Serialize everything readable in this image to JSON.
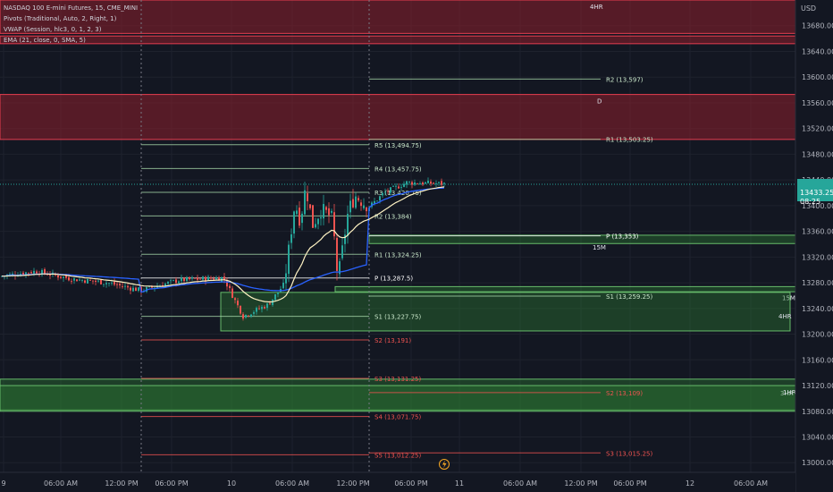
{
  "header": {
    "title": "NASDAQ 100 E-mini Futures, 15, CME_MINI",
    "indicators": [
      "Pivots (Traditional, Auto, 2, Right, 1)",
      "VWAP (Session, hlc3, 0, 1, 2, 3)",
      "EMA (21, close, 0, SMA, 5)"
    ]
  },
  "currency": "USD",
  "colors": {
    "background": "#131722",
    "grid": "#1e222d",
    "up": "#26a69a",
    "down": "#ef5350",
    "supply_fill": "#8e1f2b",
    "demand_fill": "#2e7d32",
    "pivot_line": "#a5d6a7",
    "pivot_line_low": "#ef5350",
    "vwap": "#2962ff",
    "ema": "#fff3c4",
    "axis_text": "#b2b5be",
    "price_tag": "#26a69a"
  },
  "chart_data": {
    "type": "candlestick",
    "ylim": [
      12985,
      13720
    ],
    "price_ticks": [
      13000,
      13040,
      13080,
      13120,
      13160,
      13200,
      13240,
      13280,
      13320,
      13360,
      13400,
      13440,
      13480,
      13520,
      13560,
      13600,
      13640,
      13680
    ],
    "time_labels": [
      "9",
      "06:00 AM",
      "12:00 PM",
      "06:00 PM",
      "10",
      "06:00 AM",
      "12:00 PM",
      "06:00 PM",
      "11",
      "06:00 AM",
      "12:00 PM",
      "06:00 PM",
      "12",
      "06:00 AM"
    ],
    "current_price": {
      "value": "13433.25",
      "countdown": "08:25",
      "price": 13433.25
    },
    "zones": [
      {
        "kind": "supply",
        "label": "4HR",
        "top": 13720,
        "bottom": 13668
      },
      {
        "kind": "supply",
        "label": "",
        "top": 13664,
        "bottom": 13652
      },
      {
        "kind": "supply",
        "label": "D",
        "top": 13573,
        "bottom": 13503
      },
      {
        "kind": "demand",
        "label": "15M",
        "top": 13354,
        "bottom": 13341
      },
      {
        "kind": "demand",
        "label": "15M",
        "top": 13274,
        "bottom": 13266
      },
      {
        "kind": "demand",
        "label": "4HR",
        "top": 13265,
        "bottom": 13205
      },
      {
        "kind": "demand",
        "label": "3HR",
        "top": 13130,
        "bottom": 13082
      },
      {
        "kind": "demand",
        "label": "1HR",
        "top": 13120,
        "bottom": 13080
      }
    ],
    "pivots": [
      {
        "label": "R5 (13,494.75)",
        "value": 13494.75,
        "session": 1
      },
      {
        "label": "R4 (13,457.75)",
        "value": 13457.75,
        "session": 1
      },
      {
        "label": "R3 (13,420.75)",
        "value": 13420.75,
        "session": 1
      },
      {
        "label": "R2 (13,384)",
        "value": 13384,
        "session": 1
      },
      {
        "label": "R1 (13,324.25)",
        "value": 13324.25,
        "session": 1
      },
      {
        "label": "P (13,287.5)",
        "value": 13287.5,
        "session": 1
      },
      {
        "label": "S1 (13,227.75)",
        "value": 13227.75,
        "session": 1
      },
      {
        "label": "S2 (13,191)",
        "value": 13191,
        "session": 1
      },
      {
        "label": "S3 (13,131.25)",
        "value": 13131.25,
        "session": 1
      },
      {
        "label": "S4 (13,071.75)",
        "value": 13071.75,
        "session": 1
      },
      {
        "label": "S5 (13,012.25)",
        "value": 13012.25,
        "session": 1
      },
      {
        "label": "R2 (13,597)",
        "value": 13597,
        "session": 2
      },
      {
        "label": "R1 (13,503.25)",
        "value": 13503.25,
        "session": 2
      },
      {
        "label": "P (13,353)",
        "value": 13353,
        "session": 2
      },
      {
        "label": "S1 (13,259.25)",
        "value": 13259.25,
        "session": 2
      },
      {
        "label": "S2 (13,109)",
        "value": 13109,
        "session": 2
      },
      {
        "label": "S3 (13,015.25)",
        "value": 13015.25,
        "session": 2
      }
    ]
  }
}
